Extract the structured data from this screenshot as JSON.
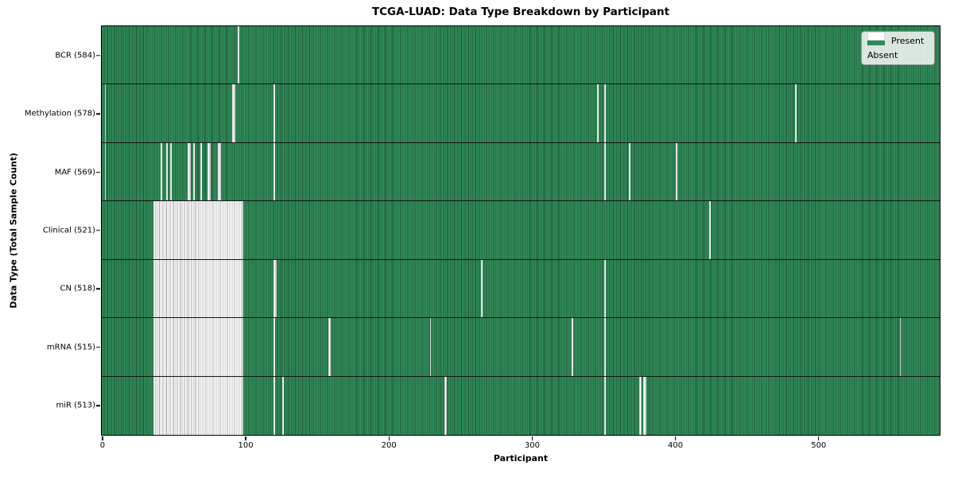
{
  "title": "TCGA-LUAD: Data Type Breakdown by Participant",
  "legend": {
    "present_label": "Present",
    "absent_label": "Absent"
  },
  "colors": {
    "present": "#2e8b57",
    "present_light": "#3a9763",
    "present_edge": "#1c5434",
    "absent": "#ffffff",
    "absent_edge": "#a4a4a4"
  },
  "chart_data": {
    "type": "heatmap",
    "title": "TCGA-LUAD: Data Type Breakdown by Participant",
    "xlabel": "Participant",
    "ylabel": "Data Type (Total Sample Count)",
    "legend_entries": [
      "Present",
      "Absent"
    ],
    "legend_position": "upper right",
    "n_participants": 585,
    "x_range": [
      0,
      584
    ],
    "x_ticks": [
      {
        "value": 0,
        "label": "0"
      },
      {
        "value": 100,
        "label": "100"
      },
      {
        "value": 200,
        "label": "200"
      },
      {
        "value": 300,
        "label": "300"
      },
      {
        "value": 400,
        "label": "400"
      },
      {
        "value": 500,
        "label": "500"
      }
    ],
    "rows": [
      {
        "label": "BCR (584)",
        "data_type": "BCR",
        "present_count": 584,
        "absent_ranges": [
          [
            95,
            95
          ]
        ]
      },
      {
        "label": "Methylation (578)",
        "data_type": "Methylation",
        "present_count": 578,
        "absent_ranges": [
          [
            2,
            2
          ],
          [
            91,
            92
          ],
          [
            120,
            120
          ],
          [
            346,
            346
          ],
          [
            351,
            351
          ],
          [
            484,
            484
          ]
        ]
      },
      {
        "label": "MAF (569)",
        "data_type": "MAF",
        "present_count": 569,
        "absent_ranges": [
          [
            2,
            2
          ],
          [
            41,
            41
          ],
          [
            45,
            45
          ],
          [
            48,
            48
          ],
          [
            60,
            61
          ],
          [
            64,
            64
          ],
          [
            69,
            69
          ],
          [
            74,
            75
          ],
          [
            81,
            82
          ],
          [
            120,
            120
          ],
          [
            351,
            351
          ],
          [
            368,
            368
          ],
          [
            401,
            401
          ]
        ]
      },
      {
        "label": "Clinical (521)",
        "data_type": "Clinical",
        "present_count": 521,
        "absent_ranges": [
          [
            36,
            98
          ],
          [
            424,
            424
          ]
        ]
      },
      {
        "label": "CN (518)",
        "data_type": "CN",
        "present_count": 518,
        "absent_ranges": [
          [
            36,
            98
          ],
          [
            120,
            121
          ],
          [
            265,
            265
          ],
          [
            351,
            351
          ]
        ]
      },
      {
        "label": "mRNA (515)",
        "data_type": "mRNA",
        "present_count": 515,
        "absent_ranges": [
          [
            36,
            98
          ],
          [
            120,
            120
          ],
          [
            158,
            159
          ],
          [
            229,
            229
          ],
          [
            328,
            328
          ],
          [
            351,
            351
          ],
          [
            557,
            557
          ]
        ]
      },
      {
        "label": "miR (513)",
        "data_type": "miR",
        "present_count": 513,
        "absent_ranges": [
          [
            36,
            98
          ],
          [
            120,
            120
          ],
          [
            126,
            126
          ],
          [
            239,
            240
          ],
          [
            351,
            351
          ],
          [
            375,
            376
          ],
          [
            378,
            379
          ]
        ]
      }
    ]
  }
}
